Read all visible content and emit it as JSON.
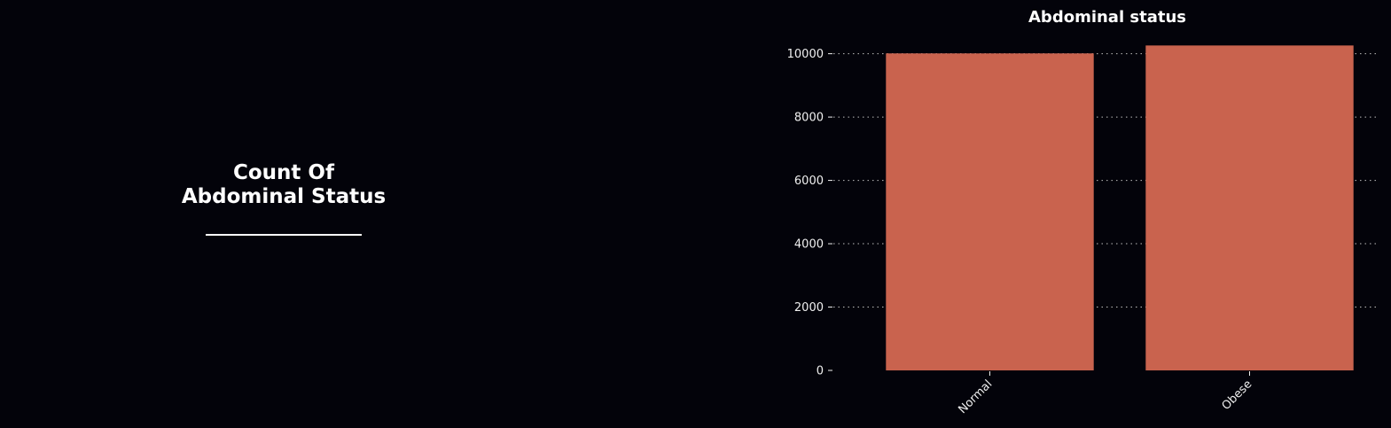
{
  "side_panel": {
    "title_line1": "Count Of",
    "title_line2": "Abdominal Status"
  },
  "chart_data": {
    "type": "bar",
    "title": "Abdominal status",
    "categories": [
      "Normal",
      "Obese"
    ],
    "values": [
      10010,
      10260
    ],
    "xlabel": "",
    "ylabel": "",
    "ylim": [
      0,
      10773
    ],
    "yticks": [
      0,
      2000,
      4000,
      6000,
      8000,
      10000
    ],
    "grid": "horizontal dotted",
    "bar_color": "#c9634e",
    "background_color": "#03030a",
    "text_color": "#ffffff",
    "x_tick_rotation": "45 degrees"
  }
}
